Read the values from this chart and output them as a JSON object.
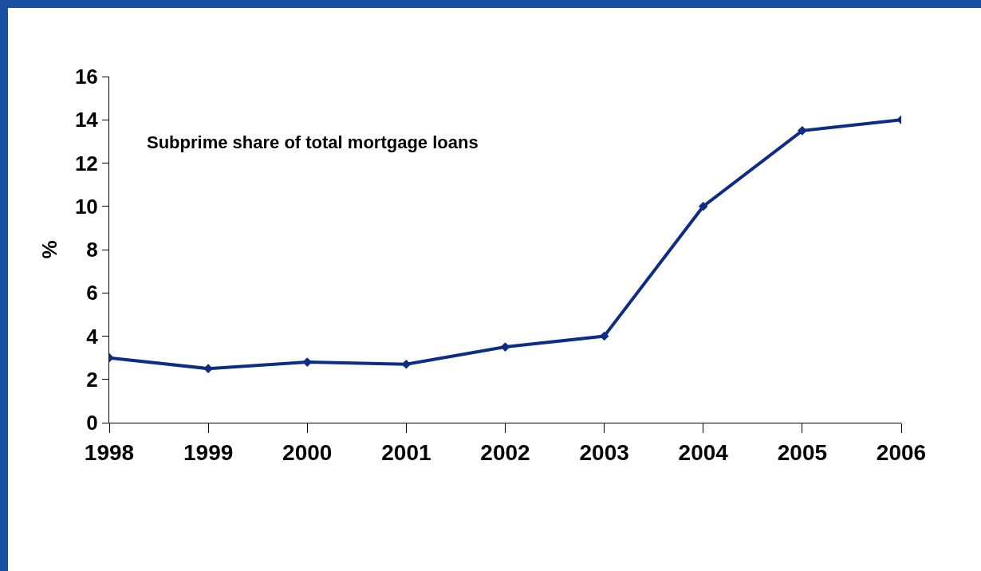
{
  "chart_data": {
    "type": "line",
    "x": [
      1998,
      1999,
      2000,
      2001,
      2002,
      2003,
      2004,
      2005,
      2006
    ],
    "series": [
      {
        "color": "#0d2c84",
        "values": [
          3.0,
          2.5,
          2.8,
          2.7,
          3.5,
          4.0,
          10.0,
          13.5,
          14.0
        ]
      }
    ],
    "xlim": [
      1998,
      2006
    ],
    "xticks": [
      1998,
      1999,
      2000,
      2001,
      2002,
      2003,
      2004,
      2005,
      2006
    ],
    "ylim": [
      0,
      16
    ],
    "yticks": [
      0,
      2,
      4,
      6,
      8,
      10,
      12,
      14,
      16
    ],
    "ylabel": "%",
    "annotations": [
      "Subprime share of total mortgage loans"
    ],
    "grid": false,
    "marker": "diamond",
    "line_style": "solid"
  }
}
